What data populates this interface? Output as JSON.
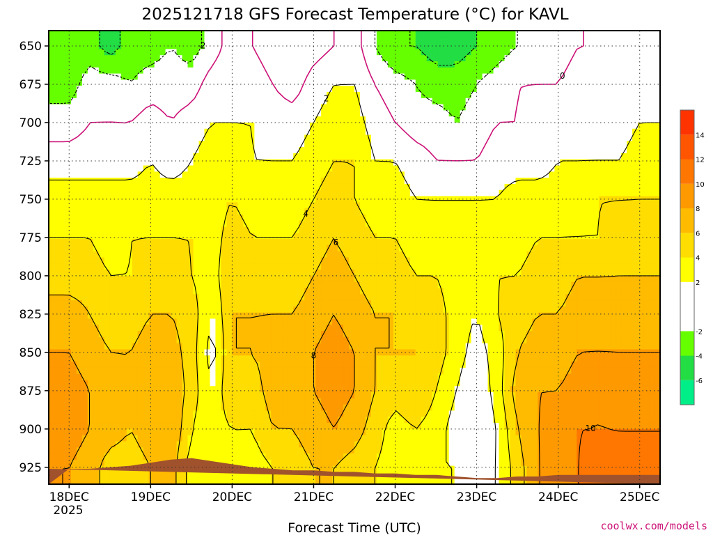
{
  "chart_data": {
    "type": "heatmap",
    "title": "2025121718 GFS Forecast Temperature (°C) for KAVL",
    "xlabel": "Forecast Time (UTC)",
    "ylabel": "",
    "y_ticks": [
      650,
      675,
      700,
      725,
      750,
      775,
      800,
      825,
      850,
      875,
      900,
      925
    ],
    "y_range": [
      640,
      936
    ],
    "x_ticks": [
      "18DEC",
      "19DEC",
      "20DEC",
      "21DEC",
      "22DEC",
      "23DEC",
      "24DEC",
      "25DEC"
    ],
    "x_year": "2025",
    "x_range": [
      -0.25,
      7.25
    ],
    "colorbar": {
      "ticks": [
        -6,
        -4,
        -2,
        2,
        4,
        6,
        8,
        10,
        12,
        14
      ],
      "bins": [
        {
          "from": -8,
          "to": -6,
          "color": "#00ee88"
        },
        {
          "from": -6,
          "to": -4,
          "color": "#22dd44"
        },
        {
          "from": -4,
          "to": -2,
          "color": "#66ff00"
        },
        {
          "from": -2,
          "to": 2,
          "color": "#ffffff"
        },
        {
          "from": 2,
          "to": 4,
          "color": "#ffff00"
        },
        {
          "from": 4,
          "to": 6,
          "color": "#ffdd00"
        },
        {
          "from": 6,
          "to": 8,
          "color": "#ffbb00"
        },
        {
          "from": 8,
          "to": 10,
          "color": "#ff9900"
        },
        {
          "from": 10,
          "to": 12,
          "color": "#ff7700"
        },
        {
          "from": 12,
          "to": 14,
          "color": "#ff5500"
        },
        {
          "from": 14,
          "to": 16,
          "color": "#ff3300"
        }
      ]
    },
    "times": [
      0,
      0.25,
      0.5,
      0.75,
      1.0,
      1.25,
      1.5,
      1.75,
      2.0,
      2.25,
      2.5,
      2.75,
      3.0,
      3.25,
      3.5,
      3.75,
      4.0,
      4.25,
      4.5,
      4.75,
      5.0,
      5.25,
      5.5,
      5.75,
      6.0,
      6.25,
      6.5,
      6.75,
      7.0
    ],
    "levels": [
      650,
      675,
      700,
      725,
      750,
      775,
      800,
      825,
      850,
      875,
      900,
      925
    ],
    "temperature": [
      [
        -4,
        -3,
        -5,
        -3,
        -3,
        -2,
        -3,
        -1,
        1,
        0,
        -1,
        -2,
        -1,
        0,
        1,
        -2,
        -4,
        -4,
        -5,
        -5,
        -4,
        -3,
        -2,
        -1,
        -1,
        0,
        0,
        0,
        1
      ],
      [
        -3,
        -1,
        -1,
        -2,
        -1,
        -1,
        -1,
        1,
        1,
        1,
        0,
        -1,
        1,
        2,
        2,
        0,
        -1,
        -2,
        -3,
        -3,
        -2,
        -1,
        0,
        0,
        0,
        1,
        1,
        0,
        1
      ],
      [
        -1,
        0,
        0,
        0,
        1,
        0,
        1,
        2,
        2,
        2,
        1,
        1,
        2,
        3,
        3,
        1,
        0,
        -1,
        -1,
        -2,
        -1,
        0,
        0,
        1,
        1,
        1,
        1,
        1,
        2
      ],
      [
        1,
        1,
        2,
        1,
        2,
        1,
        2,
        3,
        3,
        2,
        2,
        2,
        3,
        4,
        4,
        2,
        2,
        1,
        0,
        0,
        0,
        1,
        1,
        1,
        2,
        2,
        2,
        2,
        3
      ],
      [
        3,
        3,
        2,
        3,
        3,
        3,
        3,
        3,
        4,
        3,
        3,
        3,
        4,
        5,
        4,
        3,
        3,
        2,
        2,
        2,
        2,
        2,
        3,
        3,
        3,
        3,
        4,
        4,
        4
      ],
      [
        4,
        4,
        3,
        4,
        4,
        4,
        4,
        3,
        5,
        4,
        4,
        4,
        5,
        6,
        5,
        4,
        4,
        3,
        3,
        3,
        3,
        3,
        3,
        4,
        4,
        4,
        4,
        5,
        5
      ],
      [
        5,
        5,
        4,
        4,
        5,
        5,
        4,
        3,
        6,
        5,
        5,
        5,
        6,
        7,
        6,
        5,
        5,
        4,
        4,
        3,
        3,
        4,
        4,
        5,
        5,
        6,
        6,
        6,
        6
      ],
      [
        7,
        6,
        5,
        5,
        6,
        6,
        5,
        2,
        6,
        6,
        6,
        6,
        7,
        8,
        7,
        6,
        6,
        5,
        5,
        3,
        2,
        4,
        5,
        6,
        6,
        7,
        7,
        7,
        7
      ],
      [
        8,
        7,
        6,
        6,
        7,
        7,
        5,
        1,
        6,
        6,
        7,
        7,
        8,
        9,
        8,
        6,
        6,
        6,
        5,
        3,
        1,
        3,
        6,
        7,
        7,
        8,
        8,
        8,
        8
      ],
      [
        9,
        8,
        7,
        6,
        7,
        8,
        5,
        2,
        6,
        5,
        7,
        7,
        8,
        9,
        8,
        6,
        5,
        6,
        4,
        2,
        0,
        3,
        7,
        8,
        8,
        9,
        10,
        9,
        9
      ],
      [
        9,
        8,
        7,
        6,
        7,
        8,
        4,
        3,
        4,
        4,
        6,
        6,
        7,
        8,
        7,
        5,
        3,
        4,
        3,
        1,
        0,
        2,
        6,
        8,
        9,
        10,
        10,
        10,
        10
      ],
      [
        8,
        7,
        5,
        5,
        6,
        7,
        3,
        3,
        3,
        3,
        4,
        5,
        6,
        6,
        5,
        4,
        3,
        3,
        2,
        2,
        1,
        2,
        5,
        8,
        9,
        10,
        11,
        10,
        10
      ]
    ],
    "contour_levels": [
      -4,
      -2,
      0,
      2,
      4,
      6,
      8,
      10
    ],
    "terrain_color": "#a0522d",
    "zero_line_color": "#cc1177"
  },
  "credit": "coolwx.com/models"
}
